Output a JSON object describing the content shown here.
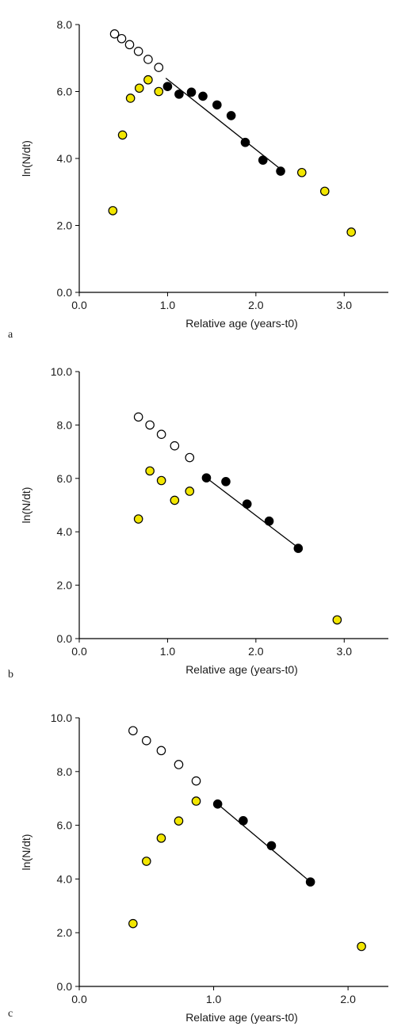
{
  "chart_data": [
    {
      "type": "scatter",
      "panel_label": "a",
      "xlabel": "Relative age (years-t0)",
      "ylabel": "ln(N/dt)",
      "xlim": [
        0.0,
        3.5
      ],
      "ylim": [
        0.0,
        8.0
      ],
      "xticks": [
        0.0,
        1.0,
        2.0,
        3.0
      ],
      "xtick_labels": [
        "0.0",
        "1.0",
        "2.0",
        "3.0"
      ],
      "yticks": [
        0.0,
        2.0,
        4.0,
        6.0,
        8.0
      ],
      "ytick_labels": [
        "0.0",
        "2.0",
        "4.0",
        "6.0",
        "8.0"
      ],
      "series": [
        {
          "role": "open",
          "color": "#ffffff",
          "x": [
            0.4,
            0.48,
            0.57,
            0.67,
            0.78,
            0.9
          ],
          "y": [
            7.72,
            7.58,
            7.4,
            7.2,
            6.96,
            6.72
          ]
        },
        {
          "role": "yellow",
          "color": "#f2e600",
          "x": [
            0.38,
            0.49,
            0.58,
            0.68,
            0.78,
            0.9,
            2.52,
            2.78,
            3.08
          ],
          "y": [
            2.44,
            4.7,
            5.8,
            6.1,
            6.35,
            6.0,
            3.58,
            3.02,
            1.8
          ]
        },
        {
          "role": "filled",
          "color": "#000000",
          "x": [
            1.0,
            1.13,
            1.27,
            1.4,
            1.56,
            1.72,
            1.88,
            2.08,
            2.28
          ],
          "y": [
            6.15,
            5.92,
            5.98,
            5.86,
            5.6,
            5.28,
            4.48,
            3.95,
            3.62
          ]
        }
      ],
      "fit_line": {
        "x": [
          0.98,
          2.28
        ],
        "y": [
          6.4,
          3.68
        ]
      }
    },
    {
      "type": "scatter",
      "panel_label": "b",
      "xlabel": "Relative age (years-t0)",
      "ylabel": "ln(N/dt)",
      "xlim": [
        0.0,
        3.5
      ],
      "ylim": [
        0.0,
        10.0
      ],
      "xticks": [
        0.0,
        1.0,
        2.0,
        3.0
      ],
      "xtick_labels": [
        "0.0",
        "1.0",
        "2.0",
        "3.0"
      ],
      "yticks": [
        0.0,
        2.0,
        4.0,
        6.0,
        8.0,
        10.0
      ],
      "ytick_labels": [
        "0.0",
        "2.0",
        "4.0",
        "6.0",
        "8.0",
        "10.0"
      ],
      "series": [
        {
          "role": "open",
          "color": "#ffffff",
          "x": [
            0.67,
            0.8,
            0.93,
            1.08,
            1.25
          ],
          "y": [
            8.3,
            8.0,
            7.65,
            7.22,
            6.78
          ]
        },
        {
          "role": "yellow",
          "color": "#f2e600",
          "x": [
            0.67,
            0.8,
            0.93,
            1.08,
            1.25,
            2.92
          ],
          "y": [
            4.48,
            6.28,
            5.92,
            5.18,
            5.52,
            0.7
          ]
        },
        {
          "role": "filled",
          "color": "#000000",
          "x": [
            1.44,
            1.66,
            1.9,
            2.15,
            2.48
          ],
          "y": [
            6.02,
            5.88,
            5.04,
            4.4,
            3.38
          ]
        }
      ],
      "fit_line": {
        "x": [
          1.44,
          2.48
        ],
        "y": [
          6.02,
          3.4
        ]
      }
    },
    {
      "type": "scatter",
      "panel_label": "c",
      "xlabel": "Relative age (years-t0)",
      "ylabel": "ln(N/dt)",
      "xlim": [
        0.0,
        2.3
      ],
      "ylim": [
        0.0,
        10.0
      ],
      "xticks": [
        0.0,
        1.0,
        2.0
      ],
      "xtick_labels": [
        "0.0",
        "1.0",
        "2.0"
      ],
      "yticks": [
        0.0,
        2.0,
        4.0,
        6.0,
        8.0,
        10.0
      ],
      "ytick_labels": [
        "0.0",
        "2.0",
        "4.0",
        "6.0",
        "8.0",
        "10.0"
      ],
      "series": [
        {
          "role": "open",
          "color": "#ffffff",
          "x": [
            0.4,
            0.5,
            0.61,
            0.74,
            0.87
          ],
          "y": [
            9.52,
            9.15,
            8.78,
            8.26,
            7.65
          ]
        },
        {
          "role": "yellow",
          "color": "#f2e600",
          "x": [
            0.4,
            0.5,
            0.61,
            0.74,
            0.87,
            2.1
          ],
          "y": [
            2.34,
            4.66,
            5.52,
            6.16,
            6.9,
            1.49
          ]
        },
        {
          "role": "filled",
          "color": "#000000",
          "x": [
            1.03,
            1.22,
            1.43,
            1.72
          ],
          "y": [
            6.79,
            6.17,
            5.24,
            3.89
          ]
        }
      ],
      "fit_line": {
        "x": [
          1.03,
          1.72
        ],
        "y": [
          6.79,
          3.89
        ]
      }
    }
  ]
}
